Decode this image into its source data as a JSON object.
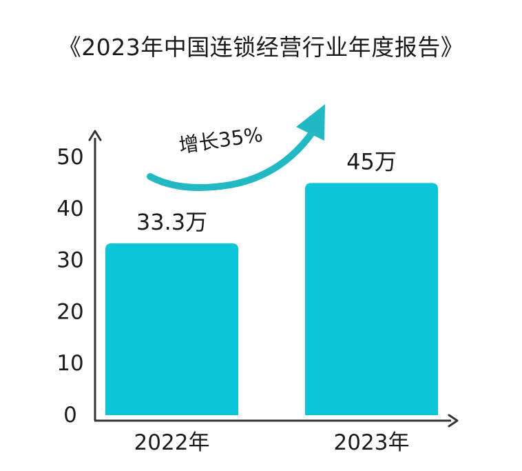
{
  "chart_data": {
    "type": "bar",
    "title": "《2023年中国连锁经营行业年度报告》",
    "categories": [
      "2022年",
      "2023年"
    ],
    "values": [
      33.3,
      45
    ],
    "data_labels": [
      "33.3万",
      "45万"
    ],
    "yticks": [
      "0",
      "10",
      "20",
      "30",
      "40",
      "50"
    ],
    "ylim": [
      0,
      50
    ],
    "xlabel": "",
    "ylabel": "",
    "grid": false,
    "annotation": "增长35%",
    "colors": {
      "bar": "#0cc5d8",
      "arrow": "#22b8c4",
      "axis": "#333333",
      "text": "#1a1a1a"
    }
  }
}
